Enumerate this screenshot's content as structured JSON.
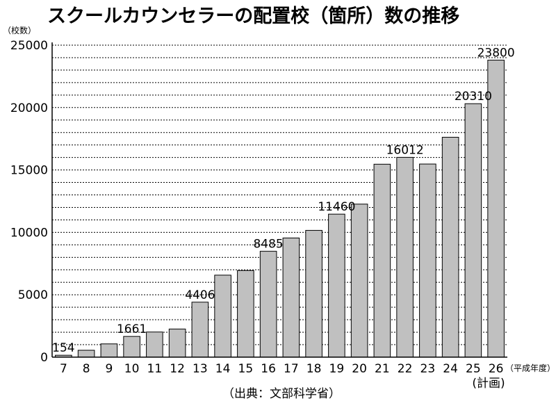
{
  "chart_data": {
    "type": "bar",
    "title": "スクールカウンセラーの配置校（箇所）数の推移",
    "ylabel": "（校数）",
    "xlabel": "（平成年度）",
    "source": "（出典：文部科学省）",
    "x_sublabel": "(計画)",
    "ylim": [
      0,
      25000
    ],
    "y_ticks": [
      0,
      5000,
      10000,
      15000,
      20000,
      25000
    ],
    "grid": true,
    "categories": [
      "7",
      "8",
      "9",
      "10",
      "11",
      "12",
      "13",
      "14",
      "15",
      "16",
      "17",
      "18",
      "19",
      "20",
      "21",
      "22",
      "23",
      "24",
      "25",
      "26"
    ],
    "values": [
      154,
      553,
      1065,
      1661,
      2015,
      2250,
      4406,
      6572,
      6941,
      8485,
      9547,
      10158,
      11460,
      12263,
      15461,
      16012,
      15476,
      17621,
      20310,
      23800
    ],
    "data_labels": {
      "0": "154",
      "3": "1661",
      "6": "4406",
      "9": "8485",
      "12": "11460",
      "15": "16012",
      "18": "20310",
      "19": "23800"
    },
    "bar_color": "#c0c0c0"
  }
}
